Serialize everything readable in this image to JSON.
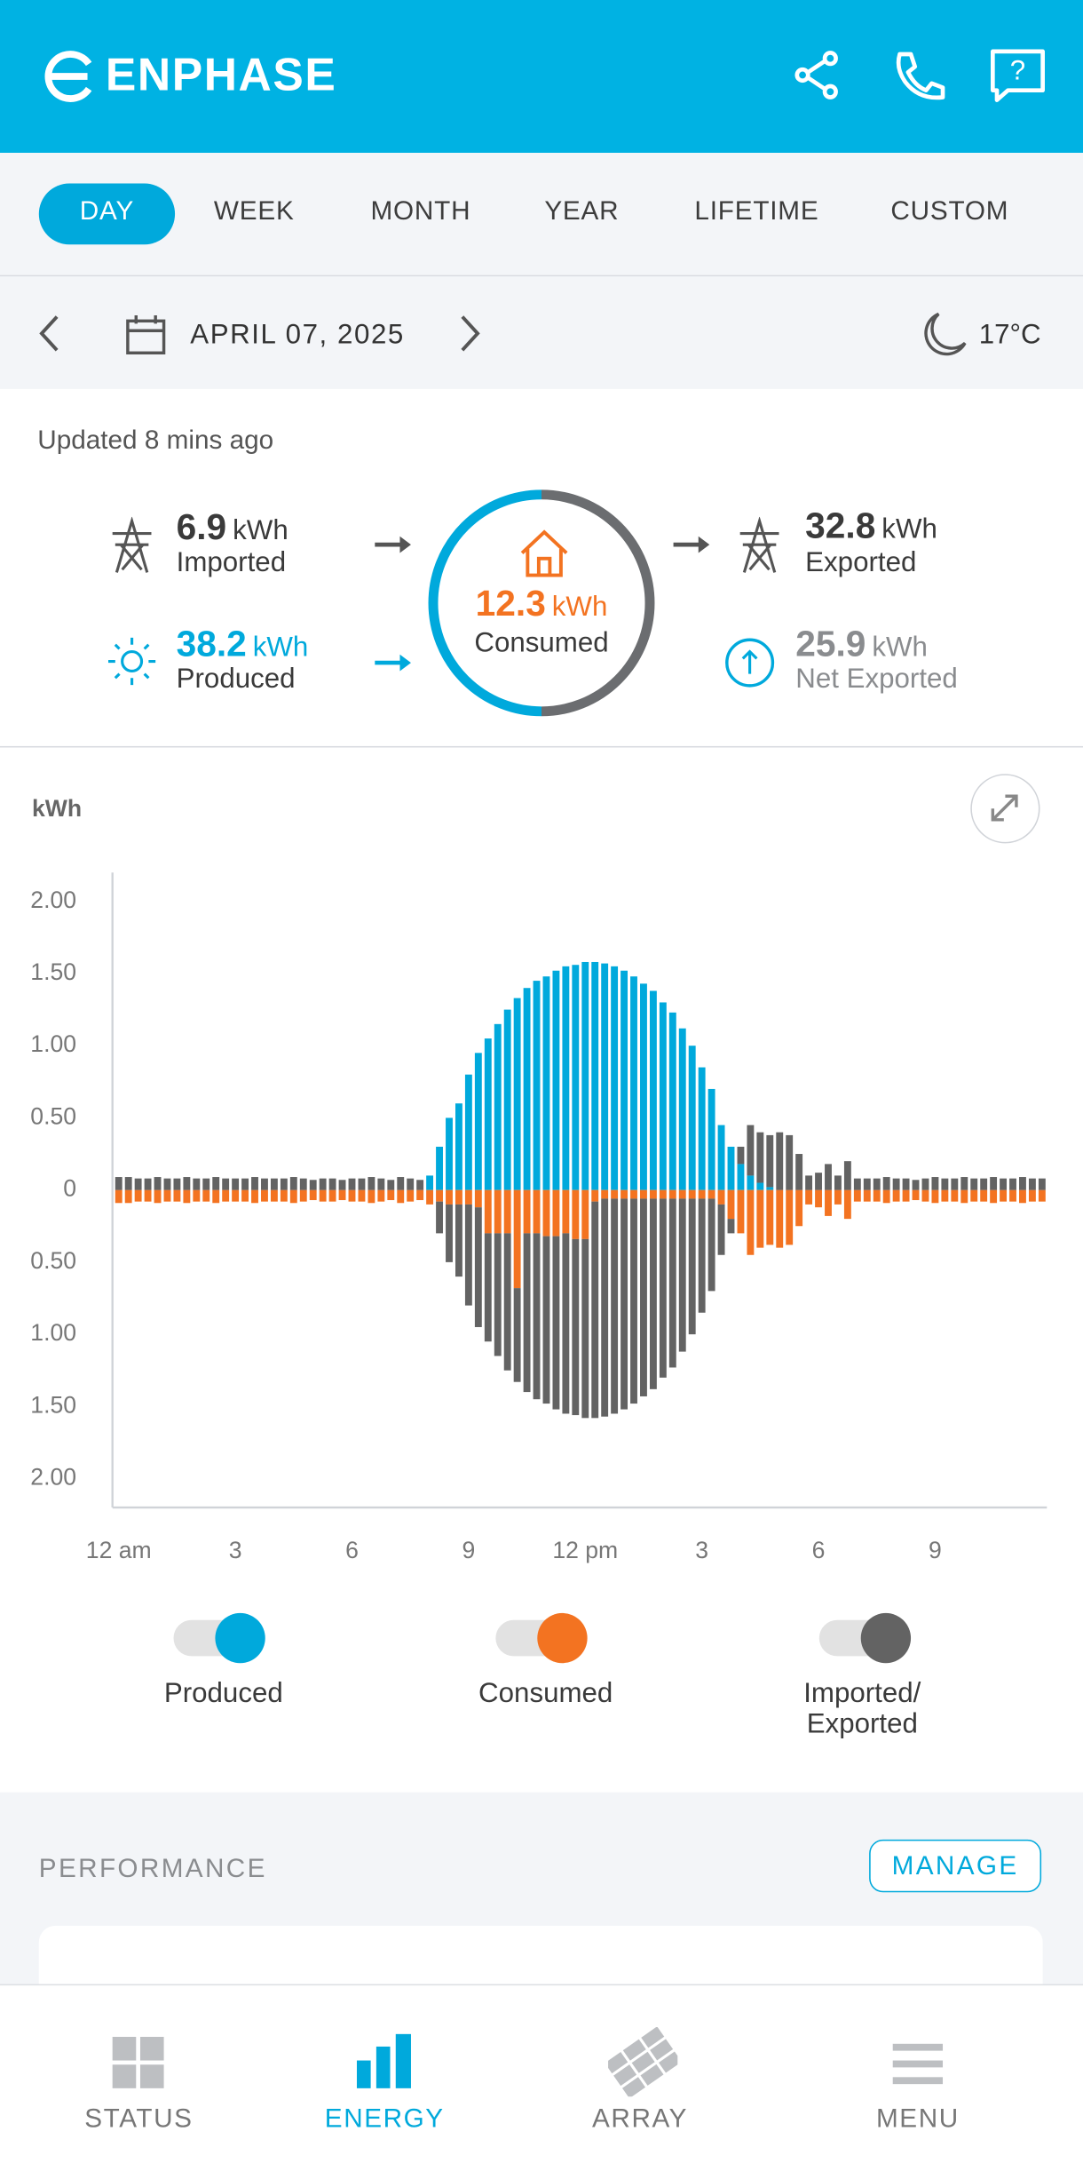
{
  "header": {
    "brand": "ENPHASE"
  },
  "tabs": [
    "DAY",
    "WEEK",
    "MONTH",
    "YEAR",
    "LIFETIME",
    "CUSTOM"
  ],
  "date_bar": {
    "date": "APRIL 07, 2025",
    "temperature": "17°C"
  },
  "summary": {
    "updated": "Updated 8 mins ago",
    "imported": {
      "value": 6.9,
      "unit": "kWh",
      "label": "Imported"
    },
    "produced": {
      "value": 38.2,
      "unit": "kWh",
      "label": "Produced"
    },
    "consumed": {
      "value": 12.3,
      "unit": "kWh",
      "label": "Consumed"
    },
    "exported": {
      "value": 32.8,
      "unit": "kWh",
      "label": "Exported"
    },
    "net_exported": {
      "value": 25.9,
      "unit": "kWh",
      "label": "Net Exported"
    }
  },
  "chart_data": {
    "type": "bar",
    "y_label": "kWh",
    "categories": [
      "12 am",
      null,
      null,
      null,
      null,
      null,
      null,
      null,
      null,
      null,
      null,
      null,
      "3",
      null,
      null,
      null,
      null,
      null,
      null,
      null,
      null,
      null,
      null,
      null,
      "6",
      null,
      null,
      null,
      null,
      null,
      null,
      null,
      null,
      null,
      null,
      null,
      "9",
      null,
      null,
      null,
      null,
      null,
      null,
      null,
      null,
      null,
      null,
      null,
      "12 pm",
      null,
      null,
      null,
      null,
      null,
      null,
      null,
      null,
      null,
      null,
      null,
      "3",
      null,
      null,
      null,
      null,
      null,
      null,
      null,
      null,
      null,
      null,
      null,
      "6",
      null,
      null,
      null,
      null,
      null,
      null,
      null,
      null,
      null,
      null,
      null,
      "9",
      null,
      null,
      null,
      null,
      null,
      null,
      null,
      null,
      null,
      null,
      null
    ],
    "series": [
      {
        "name": "Produced",
        "color": "#00a9dc",
        "values": [
          0,
          0,
          0,
          0,
          0,
          0,
          0,
          0,
          0,
          0,
          0,
          0,
          0,
          0,
          0,
          0,
          0,
          0,
          0,
          0,
          0,
          0,
          0,
          0,
          0,
          0,
          0,
          0,
          0,
          0,
          0,
          0,
          0.1,
          0.3,
          0.5,
          0.6,
          0.8,
          0.95,
          1.05,
          1.15,
          1.25,
          1.33,
          1.4,
          1.45,
          1.48,
          1.52,
          1.55,
          1.56,
          1.58,
          1.58,
          1.57,
          1.55,
          1.52,
          1.48,
          1.43,
          1.38,
          1.3,
          1.23,
          1.12,
          1.0,
          0.85,
          0.7,
          0.45,
          0.3,
          0.18,
          0.1,
          0.05,
          0.02,
          0,
          0,
          0,
          0,
          0,
          0,
          0,
          0,
          0,
          0,
          0,
          0,
          0,
          0,
          0,
          0,
          0,
          0,
          0,
          0,
          0,
          0,
          0,
          0,
          0,
          0,
          0,
          0
        ]
      },
      {
        "name": "Consumed",
        "color": "#f37321",
        "values": [
          -0.09,
          -0.09,
          -0.08,
          -0.08,
          -0.09,
          -0.08,
          -0.08,
          -0.09,
          -0.08,
          -0.08,
          -0.09,
          -0.08,
          -0.08,
          -0.08,
          -0.09,
          -0.08,
          -0.08,
          -0.08,
          -0.09,
          -0.08,
          -0.07,
          -0.08,
          -0.08,
          -0.07,
          -0.08,
          -0.08,
          -0.09,
          -0.08,
          -0.07,
          -0.09,
          -0.08,
          -0.07,
          -0.1,
          -0.08,
          -0.1,
          -0.1,
          -0.1,
          -0.12,
          -0.3,
          -0.3,
          -0.3,
          -0.68,
          -0.3,
          -0.3,
          -0.32,
          -0.32,
          -0.3,
          -0.34,
          -0.34,
          -0.08,
          -0.06,
          -0.06,
          -0.06,
          -0.06,
          -0.06,
          -0.06,
          -0.06,
          -0.06,
          -0.06,
          -0.06,
          -0.06,
          -0.06,
          -0.1,
          -0.2,
          -0.3,
          -0.45,
          -0.4,
          -0.38,
          -0.4,
          -0.38,
          -0.25,
          -0.1,
          -0.12,
          -0.18,
          -0.1,
          -0.2,
          -0.08,
          -0.08,
          -0.08,
          -0.09,
          -0.08,
          -0.08,
          -0.07,
          -0.08,
          -0.09,
          -0.08,
          -0.08,
          -0.09,
          -0.08,
          -0.08,
          -0.09,
          -0.08,
          -0.08,
          -0.09,
          -0.08,
          -0.08
        ]
      },
      {
        "name": "Imported/Exported",
        "color": "#636363",
        "values": [
          0.09,
          0.09,
          0.08,
          0.08,
          0.09,
          0.08,
          0.08,
          0.09,
          0.08,
          0.08,
          0.09,
          0.08,
          0.08,
          0.08,
          0.09,
          0.08,
          0.08,
          0.08,
          0.09,
          0.08,
          0.07,
          0.08,
          0.08,
          0.07,
          0.08,
          0.08,
          0.09,
          0.08,
          0.07,
          0.09,
          0.08,
          0.07,
          0,
          -0.22,
          -0.4,
          -0.5,
          -0.7,
          -0.83,
          -0.75,
          -0.85,
          -0.95,
          -0.65,
          -1.1,
          -1.15,
          -1.16,
          -1.2,
          -1.25,
          -1.22,
          -1.24,
          -1.5,
          -1.51,
          -1.49,
          -1.46,
          -1.42,
          -1.37,
          -1.32,
          -1.24,
          -1.17,
          -1.06,
          -0.94,
          -0.79,
          -0.64,
          -0.35,
          -0.1,
          0.12,
          0.35,
          0.35,
          0.36,
          0.4,
          0.38,
          0.25,
          0.1,
          0.12,
          0.18,
          0.1,
          0.2,
          0.08,
          0.08,
          0.08,
          0.09,
          0.08,
          0.08,
          0.07,
          0.08,
          0.09,
          0.08,
          0.08,
          0.09,
          0.08,
          0.08,
          0.09,
          0.08,
          0.08,
          0.09,
          0.08,
          0.08
        ]
      }
    ],
    "ylim": [
      -2.2,
      2.2
    ],
    "yticks": [
      {
        "value": 2,
        "label": "2.00"
      },
      {
        "value": 1.5,
        "label": "1.50"
      },
      {
        "value": 1,
        "label": "1.00"
      },
      {
        "value": 0.5,
        "label": "0.50"
      },
      0,
      {
        "value": -0.5,
        "label": "0.50"
      },
      {
        "value": -1,
        "label": "1.00"
      },
      {
        "value": -1.5,
        "label": "1.50"
      },
      {
        "value": -2,
        "label": "2.00"
      }
    ],
    "grid": false
  },
  "performance": {
    "title": "PERFORMANCE",
    "button": "MANAGE"
  },
  "nav": [
    "STATUS",
    "ENERGY",
    "ARRAY",
    "MENU"
  ]
}
